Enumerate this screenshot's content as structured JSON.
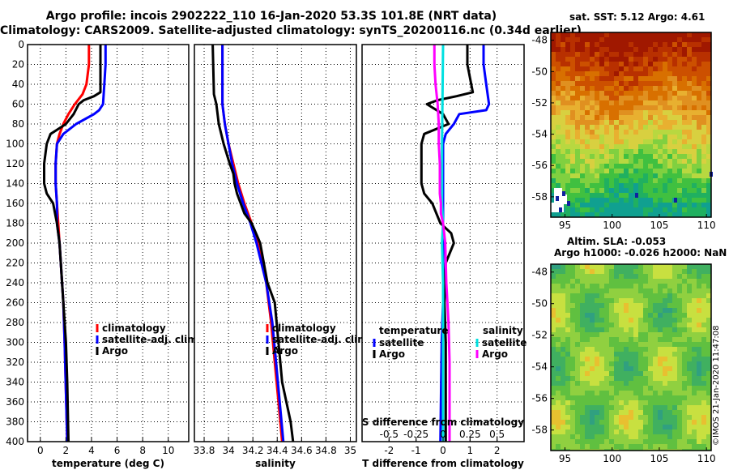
{
  "title": {
    "line1": "Argo profile: incois 2902222_110 16-Jan-2020 53.3S 101.8E (NRT data)",
    "line2": "Climatology: CARS2009. Satellite-adjusted climatology: synTS_20200116.nc (0.34d earlier)"
  },
  "sst_label": "sat. SST: 5.12 Argo: 4.61",
  "altim_label1": "Altim. SLA: -0.053",
  "altim_label2": "Argo h1000: -0.026 h2000: NaN",
  "credit": "©IMOS 21-Jan-2020 11:47:08",
  "chart_data": [
    {
      "type": "line",
      "id": "temperature",
      "xlabel": "temperature (deg C)",
      "xlim": [
        -1,
        11.6
      ],
      "ylim": [
        0,
        400
      ],
      "xticks": [
        "0",
        "2",
        "4",
        "6",
        "8",
        "10"
      ],
      "xtick_values": [
        0,
        2,
        4,
        6,
        8,
        10
      ],
      "yticks": [
        "0",
        "20",
        "40",
        "60",
        "80",
        "100",
        "120",
        "140",
        "160",
        "180",
        "200",
        "220",
        "240",
        "260",
        "280",
        "300",
        "320",
        "340",
        "360",
        "380",
        "400"
      ],
      "ytick_values": [
        0,
        20,
        40,
        60,
        80,
        100,
        120,
        140,
        160,
        180,
        200,
        220,
        240,
        260,
        280,
        300,
        320,
        340,
        360,
        380,
        400
      ],
      "legend": [
        "climatology",
        "satellite-adj. clim.",
        "Argo"
      ],
      "series": [
        {
          "name": "climatology",
          "color": "#ff0000",
          "depth": [
            0,
            20,
            40,
            50,
            60,
            70,
            80,
            90,
            100,
            120,
            140,
            160,
            180,
            200,
            260,
            300,
            400
          ],
          "values": [
            3.8,
            3.8,
            3.6,
            3.3,
            2.7,
            2.2,
            1.8,
            1.5,
            1.3,
            1.2,
            1.2,
            1.3,
            1.4,
            1.5,
            1.8,
            1.9,
            2.1
          ]
        },
        {
          "name": "satellite-adj. clim.",
          "color": "#0000ff",
          "depth": [
            0,
            20,
            40,
            60,
            66,
            70,
            80,
            90,
            100,
            120,
            140,
            160,
            180,
            200,
            260,
            300,
            400
          ],
          "values": [
            5.1,
            5.1,
            5.0,
            4.9,
            4.6,
            4.2,
            2.8,
            1.8,
            1.3,
            1.2,
            1.2,
            1.3,
            1.3,
            1.5,
            1.8,
            1.9,
            2.1
          ]
        },
        {
          "name": "Argo",
          "color": "#000000",
          "depth": [
            0,
            20,
            48,
            52,
            56,
            60,
            70,
            80,
            86,
            90,
            100,
            120,
            140,
            150,
            160,
            180,
            200,
            260,
            300,
            340,
            400
          ],
          "values": [
            4.7,
            4.7,
            4.7,
            4.2,
            3.4,
            3.0,
            2.6,
            2.0,
            1.3,
            0.8,
            0.5,
            0.3,
            0.3,
            0.5,
            1.0,
            1.3,
            1.5,
            1.8,
            2.0,
            2.1,
            2.2
          ]
        }
      ]
    },
    {
      "type": "line",
      "id": "salinity",
      "xlabel": "salinity",
      "xlim": [
        33.72,
        35.05
      ],
      "ylim": [
        0,
        400
      ],
      "xticks": [
        "33.8",
        "34",
        "34.2",
        "34.4",
        "34.6",
        "34.8",
        "35"
      ],
      "xtick_values": [
        33.8,
        34.0,
        34.2,
        34.4,
        34.6,
        34.8,
        35.0
      ],
      "legend": [
        "climatology",
        "satellite-adj. clim.",
        "Argo"
      ],
      "series": [
        {
          "name": "climatology",
          "color": "#ff0000",
          "depth": [
            0,
            60,
            80,
            100,
            120,
            140,
            160,
            180,
            200,
            240,
            280,
            320,
            360,
            400
          ],
          "values": [
            33.95,
            33.95,
            33.97,
            34.0,
            34.04,
            34.08,
            34.13,
            34.19,
            34.24,
            34.31,
            34.35,
            34.38,
            34.41,
            34.44
          ]
        },
        {
          "name": "satellite-adj. clim.",
          "color": "#0000ff",
          "depth": [
            0,
            60,
            80,
            100,
            120,
            140,
            160,
            180,
            200,
            240,
            280,
            320,
            360,
            400
          ],
          "values": [
            33.95,
            33.95,
            33.97,
            34.0,
            34.03,
            34.07,
            34.12,
            34.18,
            34.23,
            34.31,
            34.36,
            34.39,
            34.42,
            34.45
          ]
        },
        {
          "name": "Argo",
          "color": "#000000",
          "depth": [
            0,
            50,
            60,
            80,
            100,
            120,
            130,
            140,
            150,
            160,
            170,
            180,
            200,
            220,
            240,
            260,
            300,
            340,
            380,
            400
          ],
          "values": [
            33.87,
            33.88,
            33.9,
            33.92,
            33.96,
            34.01,
            34.04,
            34.05,
            34.07,
            34.1,
            34.13,
            34.19,
            34.26,
            34.29,
            34.32,
            34.38,
            34.41,
            34.44,
            34.51,
            34.53
          ]
        }
      ]
    },
    {
      "type": "line",
      "id": "difference",
      "xlabel": "T difference from climatology",
      "xlabel2": "S difference from climatology",
      "xlim": [
        -3,
        3
      ],
      "ylim": [
        0,
        400
      ],
      "xticks": [
        "-2",
        "-1",
        "0",
        "1",
        "2"
      ],
      "xtick_values": [
        -2,
        -1,
        0,
        1,
        2
      ],
      "s_ticks": [
        "-0.5",
        "-0.25",
        "0",
        "0.25",
        "0.5"
      ],
      "s_tick_values": [
        -0.5,
        -0.25,
        0,
        0.25,
        0.5
      ],
      "s_scale": 4,
      "legend_temperature_header": "temperature",
      "legend_salinity_header": "salinity",
      "legend_temperature": [
        "satellite",
        "Argo"
      ],
      "legend_salinity": [
        "satellite",
        "Argo"
      ],
      "series": [
        {
          "name": "T satellite",
          "color": "#0000ff",
          "depth": [
            0,
            20,
            40,
            60,
            66,
            70,
            80,
            90,
            100,
            120,
            140,
            160,
            180,
            200,
            260,
            300,
            400
          ],
          "values": [
            1.5,
            1.5,
            1.6,
            1.7,
            1.6,
            0.6,
            0.4,
            0.1,
            0.0,
            0.0,
            0.0,
            0.0,
            0.0,
            0.0,
            0.0,
            -0.05,
            -0.1
          ]
        },
        {
          "name": "T Argo",
          "color": "#000000",
          "depth": [
            0,
            20,
            48,
            52,
            56,
            60,
            70,
            80,
            90,
            100,
            120,
            140,
            150,
            160,
            180,
            190,
            200,
            220,
            260,
            300,
            340,
            400
          ],
          "values": [
            0.9,
            0.9,
            1.1,
            0.5,
            -0.2,
            -0.6,
            0.0,
            0.2,
            -0.7,
            -0.8,
            -0.8,
            -0.8,
            -0.7,
            -0.4,
            -0.1,
            0.3,
            0.4,
            0.1,
            0.05,
            0.1,
            0.1,
            0.1
          ]
        },
        {
          "name": "S satellite",
          "color": "#00e0e0",
          "depth": [
            0,
            100,
            140,
            160,
            180,
            200,
            240,
            280,
            320,
            360,
            400
          ],
          "values": [
            0.0,
            -0.01,
            -0.01,
            -0.01,
            0.0,
            -0.01,
            0.0,
            0.0,
            0.0,
            0.0,
            0.0
          ]
        },
        {
          "name": "S Argo",
          "color": "#ff00ff",
          "depth": [
            0,
            20,
            40,
            60,
            80,
            100,
            120,
            140,
            150,
            160,
            170,
            180,
            200,
            240,
            280,
            320,
            360,
            400
          ],
          "values": [
            -0.08,
            -0.08,
            -0.07,
            -0.05,
            -0.04,
            -0.04,
            -0.03,
            -0.03,
            -0.03,
            -0.02,
            -0.02,
            0.0,
            0.02,
            0.03,
            0.05,
            0.06,
            0.06,
            0.06
          ]
        }
      ]
    },
    {
      "type": "heatmap",
      "id": "sst-map",
      "title": "sat. SST: 5.12 Argo: 4.61",
      "xlim": [
        93.5,
        110.5
      ],
      "ylim": [
        -59.3,
        -47.5
      ],
      "xticks": [
        "95",
        "100",
        "105",
        "110"
      ],
      "xtick_values": [
        95,
        100,
        105,
        110
      ],
      "yticks": [
        "-48",
        "-50",
        "-52",
        "-54",
        "-56",
        "-58"
      ],
      "ytick_values": [
        -48,
        -50,
        -52,
        -54,
        -56,
        -58
      ]
    },
    {
      "type": "heatmap",
      "id": "sla-map",
      "title": "Altim. SLA: -0.053",
      "xlim": [
        93.5,
        110.5
      ],
      "ylim": [
        -59.3,
        -47.5
      ],
      "xticks": [
        "95",
        "100",
        "105",
        "110"
      ],
      "xtick_values": [
        95,
        100,
        105,
        110
      ],
      "yticks": [
        "-48",
        "-50",
        "-52",
        "-54",
        "-56",
        "-58"
      ],
      "ytick_values": [
        -48,
        -50,
        -52,
        -54,
        -56,
        -58
      ]
    }
  ]
}
